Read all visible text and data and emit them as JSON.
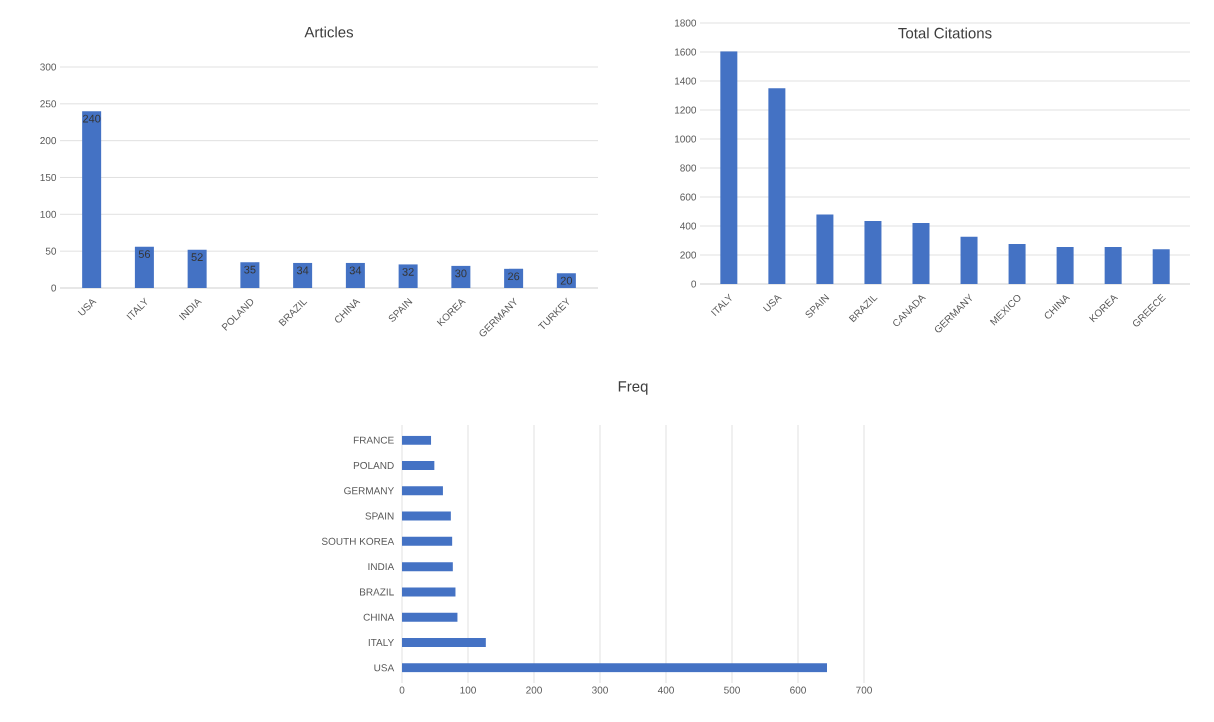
{
  "chart_data": [
    {
      "type": "bar",
      "title": "Articles",
      "categories": [
        "USA",
        "ITALY",
        "INDIA",
        "POLAND",
        "BRAZIL",
        "CHINA",
        "SPAIN",
        "KOREA",
        "GERMANY",
        "TURKEY"
      ],
      "values": [
        240,
        56,
        52,
        35,
        34,
        34,
        32,
        30,
        26,
        20
      ],
      "color": "#4472c4",
      "ylim": [
        0,
        300
      ],
      "yticks": [
        0,
        50,
        100,
        150,
        200,
        250,
        300
      ],
      "grid": "y",
      "data_labels": true
    },
    {
      "type": "bar",
      "title": "Total Citations",
      "categories": [
        "ITALY",
        "USA",
        "SPAIN",
        "BRAZIL",
        "CANADA",
        "GERMANY",
        "MEXICO",
        "CHINA",
        "KOREA",
        "GREECE"
      ],
      "values": [
        1605,
        1350,
        480,
        435,
        420,
        325,
        275,
        255,
        255,
        240
      ],
      "color": "#4472c4",
      "ylim": [
        0,
        1800
      ],
      "yticks": [
        0,
        200,
        400,
        600,
        800,
        1000,
        1200,
        1400,
        1600,
        1800
      ],
      "grid": "y"
    },
    {
      "type": "bar",
      "orientation": "horizontal",
      "title": "Freq",
      "categories": [
        "FRANCE",
        "POLAND",
        "GERMANY",
        "SPAIN",
        "SOUTH KOREA",
        "INDIA",
        "BRAZIL",
        "CHINA",
        "ITALY",
        "USA"
      ],
      "values": [
        44,
        49,
        62,
        74,
        76,
        77,
        81,
        84,
        127,
        644
      ],
      "color": "#4472c4",
      "xlim": [
        0,
        700
      ],
      "xticks": [
        0,
        100,
        200,
        300,
        400,
        500,
        600,
        700
      ],
      "grid": "x"
    }
  ]
}
